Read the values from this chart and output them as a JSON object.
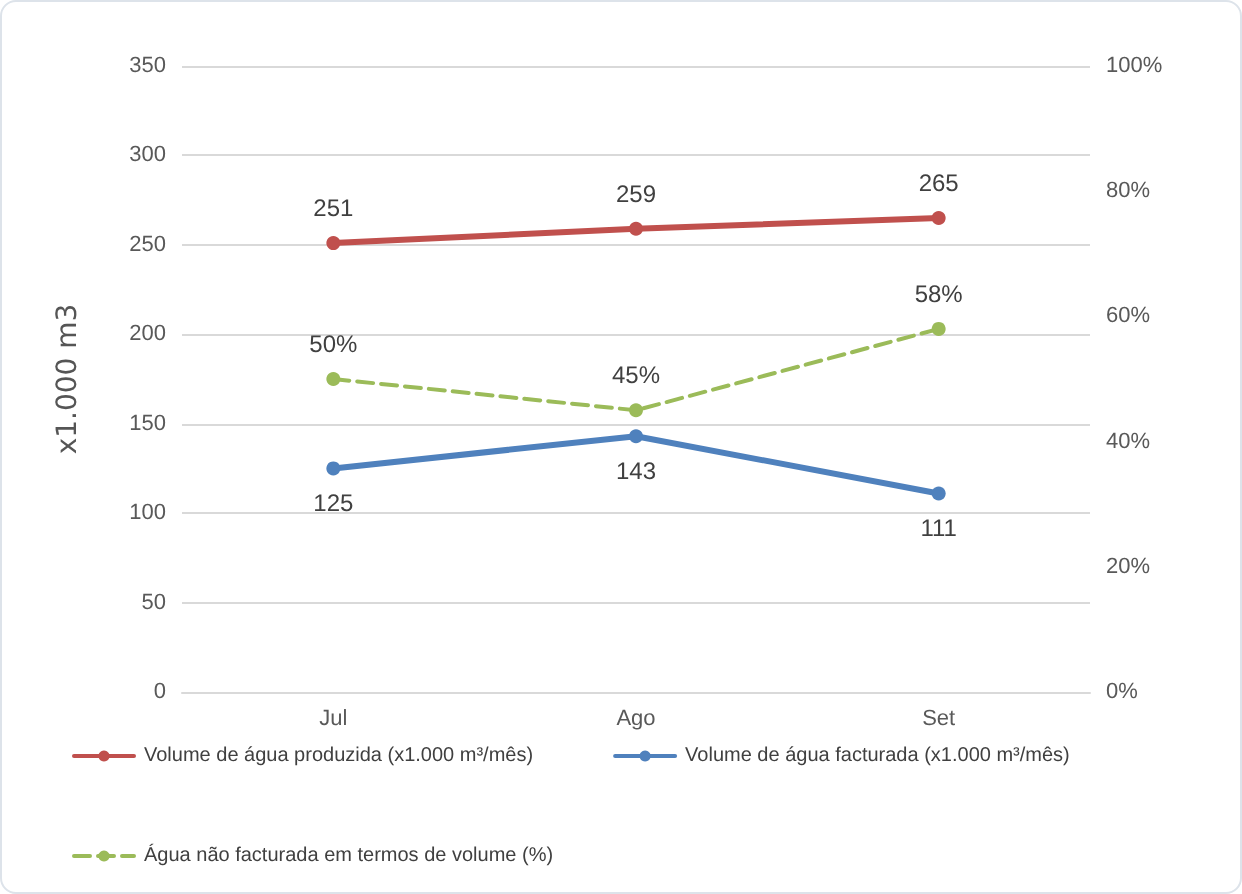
{
  "chart_data": {
    "type": "line",
    "ylabel": "x1.000 m3",
    "categories": [
      "Jul",
      "Ago",
      "Set"
    ],
    "ylim": [
      0,
      350
    ],
    "yticks": [
      0,
      50,
      100,
      150,
      200,
      250,
      300,
      350
    ],
    "y2lim": [
      0,
      100
    ],
    "y2ticks": [
      {
        "value": 0,
        "label": "0%"
      },
      {
        "value": 20,
        "label": "20%"
      },
      {
        "value": 40,
        "label": "40%"
      },
      {
        "value": 60,
        "label": "60%"
      },
      {
        "value": 80,
        "label": "80%"
      },
      {
        "value": 100,
        "label": "100%"
      }
    ],
    "grid": "y",
    "legend": "bottom",
    "marker": "circle",
    "data_labels": true,
    "series": [
      {
        "name": "Volume de água produzida (x1.000 m³/mês)",
        "color": "#c0504d",
        "values": [
          251,
          259,
          265
        ]
      },
      {
        "name": "Volume de água facturada (x1.000 m³/mês)",
        "color": "#4f81bd",
        "values": [
          125,
          143,
          111
        ]
      },
      {
        "name": "Água não facturada em termos de volume (%)",
        "color": "#9bbb59",
        "values": [
          50,
          45,
          58
        ],
        "axis": "y2",
        "line_style": "dashed",
        "value_labels": [
          "50%",
          "45%",
          "58%"
        ]
      }
    ]
  }
}
